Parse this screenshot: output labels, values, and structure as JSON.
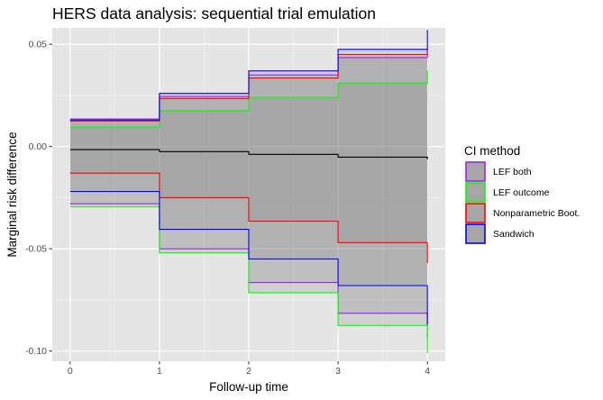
{
  "chart_data": {
    "type": "line",
    "title": "HERS data analysis: sequential trial emulation",
    "xlabel": "Follow-up time",
    "ylabel": "Marginal risk difference",
    "xlim": [
      -0.2,
      4.2
    ],
    "ylim": [
      -0.105,
      0.058
    ],
    "x_ticks": [
      0,
      1,
      2,
      3,
      4
    ],
    "x_tick_labels": [
      "0",
      "1",
      "2",
      "3",
      "4"
    ],
    "y_ticks": [
      -0.1,
      -0.05,
      0.0,
      0.05
    ],
    "y_tick_labels": [
      "-0.10",
      "-0.05",
      "0.00",
      "0.05"
    ],
    "grid": true,
    "step": true,
    "x": [
      0,
      1,
      2,
      3,
      4
    ],
    "estimate": {
      "color": "#000000",
      "values": [
        -0.0015,
        -0.0025,
        -0.0038,
        -0.0052,
        -0.0062
      ]
    },
    "legend": {
      "title": "CI method",
      "position": "right"
    },
    "series": [
      {
        "name": "LEF both",
        "color": "#a020f0",
        "lower": [
          -0.028,
          -0.05,
          -0.0665,
          -0.0815,
          -0.0935
        ],
        "upper": [
          0.0135,
          0.0245,
          0.035,
          0.0435,
          0.048
        ]
      },
      {
        "name": "LEF outcome",
        "color": "#00ff00",
        "lower": [
          -0.0295,
          -0.052,
          -0.0715,
          -0.0875,
          -0.101
        ],
        "upper": [
          0.0095,
          0.0175,
          0.024,
          0.031,
          0.037
        ]
      },
      {
        "name": "Nonparametric Boot.",
        "color": "#ff0000",
        "lower": [
          -0.013,
          -0.025,
          -0.0365,
          -0.047,
          -0.057
        ],
        "upper": [
          0.0125,
          0.0235,
          0.0335,
          0.045,
          0.047
        ]
      },
      {
        "name": "Sandwich",
        "color": "#0000ff",
        "lower": [
          -0.022,
          -0.0405,
          -0.055,
          -0.068,
          -0.087
        ],
        "upper": [
          0.013,
          0.026,
          0.037,
          0.0475,
          0.057
        ]
      }
    ]
  }
}
